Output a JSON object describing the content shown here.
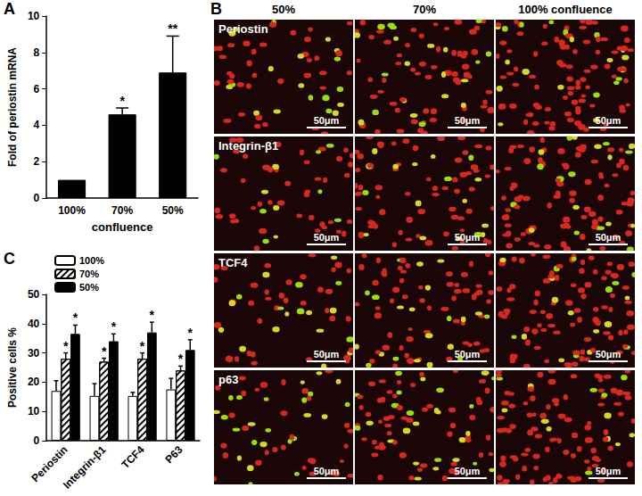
{
  "chart_data": [
    {
      "type": "bar",
      "annotations": [
        "A"
      ],
      "categories": [
        "100%",
        "70%",
        "50%"
      ],
      "values": [
        1,
        4.6,
        6.9
      ],
      "errors": [
        0,
        0.35,
        2.0
      ],
      "significance": [
        null,
        "*",
        "**"
      ],
      "color": "#000000",
      "x_label": "confluence",
      "y_label": "Fold of periostin mRNA",
      "ylim": [
        0,
        10
      ],
      "yticks": [
        0,
        2,
        4,
        6,
        8,
        10
      ],
      "grid": false
    },
    {
      "type": "bar",
      "annotations": [
        "C"
      ],
      "categories": [
        "Periostin",
        "Integrin-β1",
        "TCF4",
        "P63"
      ],
      "series": [
        {
          "name": "100%",
          "color": "#ffffff",
          "values": [
            17,
            15.3,
            15.3,
            17.5
          ],
          "errors": [
            3.5,
            4.2,
            1.2,
            3.8
          ]
        },
        {
          "name": "70%",
          "color": "#ffffff",
          "marker": "hatched",
          "values": [
            28,
            27,
            28,
            24
          ],
          "errors": [
            2,
            1.2,
            2,
            1.5
          ],
          "significance": [
            "*",
            "*",
            "*",
            "*"
          ]
        },
        {
          "name": "50%",
          "color": "#000000",
          "values": [
            36.5,
            34,
            37,
            31
          ],
          "errors": [
            3,
            2.5,
            3.5,
            3.5
          ],
          "significance": [
            "*",
            "*",
            "*",
            "*"
          ]
        }
      ],
      "y_label": "Positive cells %",
      "ylim": [
        0,
        50
      ],
      "yticks": [
        0,
        10,
        20,
        30,
        40,
        50
      ],
      "grid": false,
      "legend": "top-left"
    }
  ],
  "image_panel": {
    "annotations": [
      "B"
    ],
    "columns": [
      "50%",
      "70%",
      "100% confluence"
    ],
    "rows": [
      "Periostin",
      "Integrin-β1",
      "TCF4",
      "p63"
    ],
    "scale_bar": "50μm"
  }
}
